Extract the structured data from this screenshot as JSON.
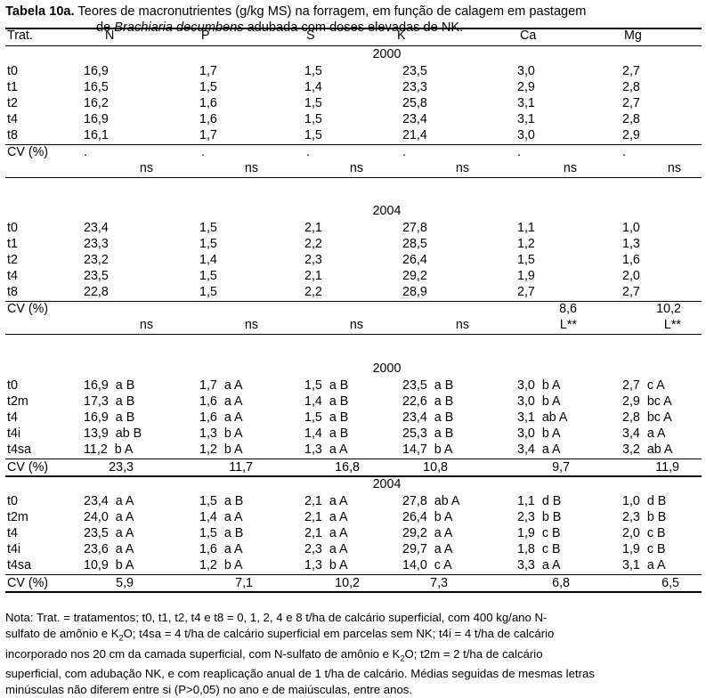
{
  "title": {
    "label": "Tabela 10a.",
    "line1_rest": " Teores de macronutrientes (g/kg MS) na forragem, em função de calagem em pastagem",
    "line2_pre": "de ",
    "line2_italic": "Brachiaria decumbens",
    "line2_post": " adubada com doses elevadas de NK."
  },
  "headers": [
    "Trat.",
    "N",
    "P",
    "S",
    "K",
    "Ca",
    "Mg"
  ],
  "block1": {
    "year": "2000",
    "rows": [
      [
        "t0",
        "16,9",
        "1,7",
        "1,5",
        "23,5",
        "3,0",
        "2,7"
      ],
      [
        "t1",
        "16,5",
        "1,5",
        "1,4",
        "23,3",
        "2,9",
        "2,8"
      ],
      [
        "t2",
        "16,2",
        "1,6",
        "1,5",
        "25,8",
        "3,1",
        "2,7"
      ],
      [
        "t4",
        "16,9",
        "1,6",
        "1,5",
        "23,4",
        "3,1",
        "2,8"
      ],
      [
        "t8",
        "16,1",
        "1,7",
        "1,5",
        "21,4",
        "3,0",
        "2,9"
      ]
    ],
    "cv_label": "CV (%)",
    "cv": [
      ".",
      ".",
      ".",
      ".",
      ".",
      "."
    ],
    "sig": [
      "ns",
      "ns",
      "ns",
      "ns",
      "ns",
      "ns"
    ]
  },
  "block2": {
    "year": "2004",
    "rows": [
      [
        "t0",
        "23,4",
        "1,5",
        "2,1",
        "27,8",
        "1,1",
        "1,0"
      ],
      [
        "t1",
        "23,3",
        "1,5",
        "2,2",
        "28,5",
        "1,2",
        "1,3"
      ],
      [
        "t2",
        "23,2",
        "1,4",
        "2,3",
        "26,4",
        "1,5",
        "1,6"
      ],
      [
        "t4",
        "23,5",
        "1,5",
        "2,1",
        "29,2",
        "1,9",
        "2,0"
      ],
      [
        "t8",
        "22,8",
        "1,5",
        "2,2",
        "28,9",
        "2,7",
        "2,7"
      ]
    ],
    "cv_label": "CV (%)",
    "cv": [
      "",
      "",
      "",
      "",
      "8,6",
      "10,2"
    ],
    "sig": [
      "ns",
      "ns",
      "ns",
      "ns",
      "L**",
      "L**"
    ]
  },
  "block3": {
    "year": "2000",
    "rows": [
      [
        "t0",
        "16,9  a B",
        "1,7  a A",
        "1,5  a B",
        "23,5  a B",
        "3,0  b A",
        "2,7  c A"
      ],
      [
        "t2m",
        "17,3  a B",
        "1,6  a A",
        "1,4  a B",
        "22,6  a B",
        "3,0  b A",
        "2,9  bc A"
      ],
      [
        "t4",
        "16,9  a B",
        "1,6  a A",
        "1,5  a B",
        "23,4  a B",
        "3,1  ab A",
        "2,8  bc A"
      ],
      [
        "t4i",
        "13,9  ab B",
        "1,3  b A",
        "1,4  a B",
        "25,3  a B",
        "3,0  b A",
        "3,4  a A"
      ],
      [
        "t4sa",
        "11,2  b A",
        "1,2  b A",
        "1,3  a A",
        "14,7  b A",
        "3,4  a A",
        "3,2  ab A"
      ]
    ],
    "cv_label": "CV (%)",
    "cv": [
      "23,3",
      "11,7",
      "16,8",
      "10,8",
      "9,7",
      "11,9"
    ]
  },
  "block4": {
    "year": "2004",
    "rows": [
      [
        "t0",
        "23,4  a A",
        "1,5  a B",
        "2,1  a A",
        "27,8  ab A",
        "1,1  d B",
        "1,0  d B"
      ],
      [
        "t2m",
        "24,0  a A",
        "1,4  a A",
        "2,1  a A",
        "26,4  b A",
        "2,3  b B",
        "2,3  b B"
      ],
      [
        "t4",
        "23,5  a A",
        "1,5  a B",
        "2,1  a A",
        "29,2  a A",
        "1,9  c B",
        "2,0  c B"
      ],
      [
        "t4i",
        "23,6  a A",
        "1,6  a A",
        "2,3  a A",
        "29,7  a A",
        "1,8  c B",
        "1,9  c B"
      ],
      [
        "t4sa",
        "10,9  b A",
        "1,2  b A",
        "1,3  b A",
        "14,0  c A",
        "3,3  a A",
        "3,1  a A"
      ]
    ],
    "cv_label": "CV (%)",
    "cv": [
      "5,9",
      "7,1",
      "10,2",
      "7,3",
      "6,8",
      "6,5"
    ]
  },
  "note": {
    "line1": "Nota: Trat. = tratamentos; t0, t1, t2, t4 e t8 = 0, 1, 2, 4 e 8 t/ha de calcário superficial, com 400 kg/ano N-",
    "line2_pre": "sulfato de amônio e K",
    "line2_sub": "2",
    "line2_post": "O; t4sa = 4 t/ha de calcário superficial em parcelas sem NK; t4i = 4 t/ha de calcário",
    "line3_pre": "incorporado nos 20 cm da camada superficial, com N-sulfato de amônio e K",
    "line3_sub": "2",
    "line3_post": "O; t2m = 2 t/ha de calcário",
    "line4": "superficial, com adubação NK, e com reaplicação anual de 1 t/ha de calcário. Médias seguidas de mesmas letras",
    "line5": "minúsculas não diferem entre si (P>0,05) no ano e de maiúsculas, entre anos."
  }
}
